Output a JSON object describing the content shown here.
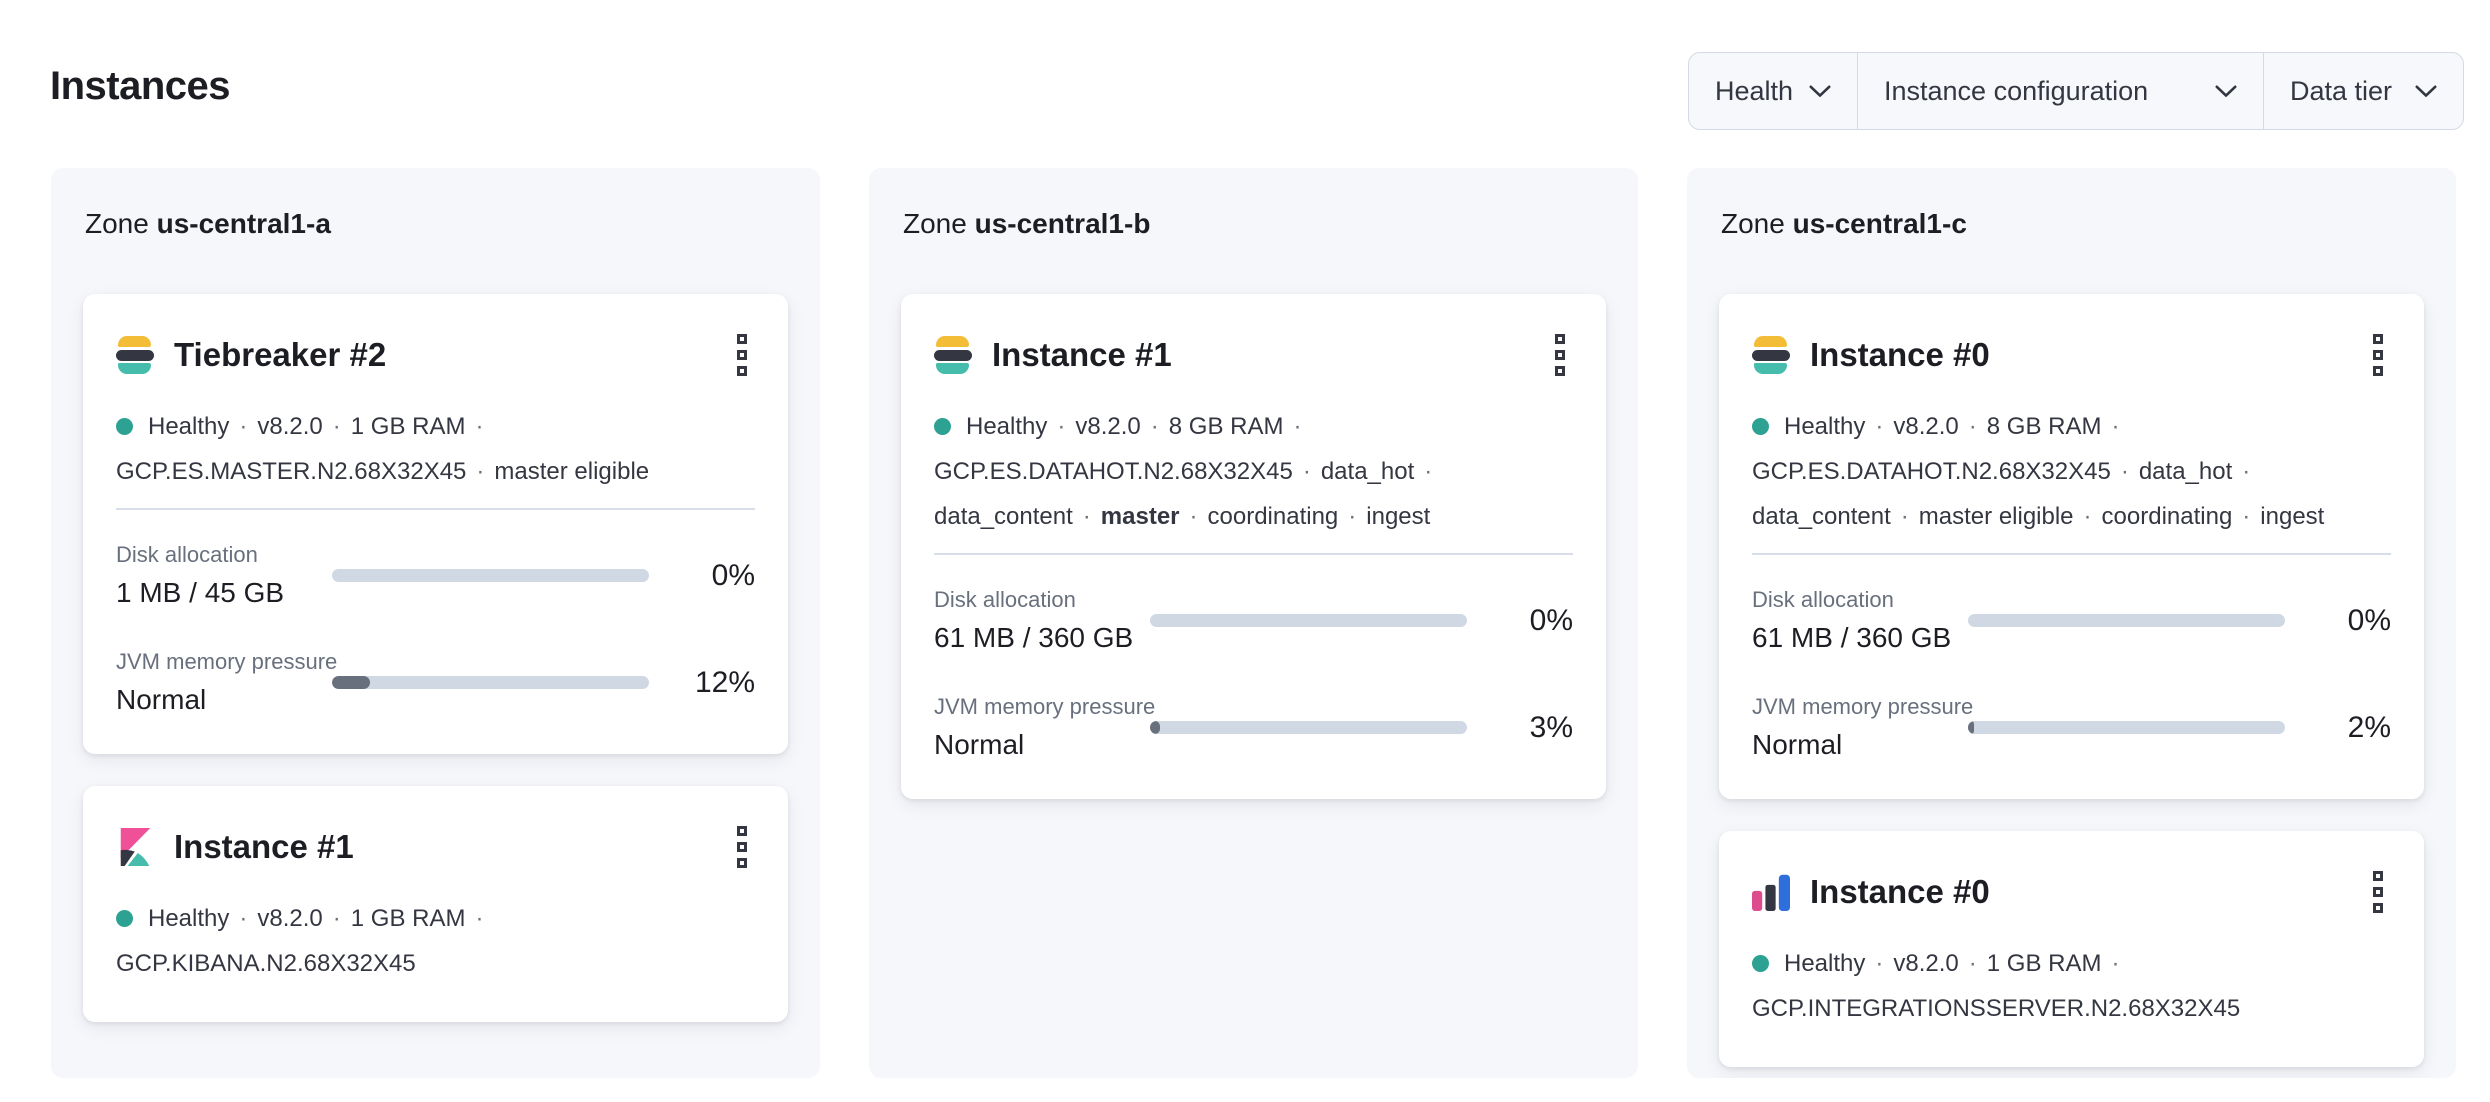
{
  "page": {
    "title": "Instances"
  },
  "filter_bar": {
    "items": [
      {
        "label": "Health",
        "icon": "chevron-down"
      },
      {
        "label": "Instance configuration",
        "icon": "chevron-down"
      },
      {
        "label": "Data tier",
        "icon": "chevron-down"
      }
    ]
  },
  "colors": {
    "health": "#2DA293",
    "brand_dark": "#343741",
    "teal": "#45BCAC",
    "es_yellow": "#F4BD38",
    "kibana_pink": "#EF5098",
    "int_pink": "#DD4C8D",
    "int_blue": "#2F6FDB",
    "track": "#D0D8E4",
    "fill": "#69707D",
    "panel_bg": "#F5F7FB"
  },
  "zones": [
    {
      "label": "Zone",
      "name": "us-central1-a",
      "cards": [
        {
          "icon": "elasticsearch-logo",
          "title": "Tiebreaker #2",
          "health": "Healthy",
          "meta": [
            {
              "trail": true,
              "segs": [
                {
                  "t": "Healthy"
                },
                {
                  "t": "v8.2.0"
                },
                {
                  "t": "1 GB RAM"
                }
              ]
            },
            {
              "trail": false,
              "segs": [
                {
                  "t": "GCP.ES.MASTER.N2.68X32X45"
                },
                {
                  "t": "master eligible"
                }
              ]
            }
          ],
          "metrics": [
            {
              "label": "Disk allocation",
              "value": "1 MB / 45 GB",
              "percent": "0%",
              "fill": 0
            },
            {
              "label": "JVM memory pressure",
              "value": "Normal",
              "percent": "12%",
              "fill": 12
            }
          ]
        },
        {
          "icon": "kibana-logo",
          "title": "Instance #1",
          "health": "Healthy",
          "meta": [
            {
              "trail": true,
              "segs": [
                {
                  "t": "Healthy"
                },
                {
                  "t": "v8.2.0"
                },
                {
                  "t": "1 GB RAM"
                }
              ]
            },
            {
              "trail": false,
              "segs": [
                {
                  "t": "GCP.KIBANA.N2.68X32X45"
                }
              ]
            }
          ],
          "metrics": []
        }
      ]
    },
    {
      "label": "Zone",
      "name": "us-central1-b",
      "cards": [
        {
          "icon": "elasticsearch-logo",
          "title": "Instance #1",
          "health": "Healthy",
          "meta": [
            {
              "trail": true,
              "segs": [
                {
                  "t": "Healthy"
                },
                {
                  "t": "v8.2.0"
                },
                {
                  "t": "8 GB RAM"
                }
              ]
            },
            {
              "trail": true,
              "segs": [
                {
                  "t": "GCP.ES.DATAHOT.N2.68X32X45"
                },
                {
                  "t": "data_hot"
                }
              ]
            },
            {
              "trail": false,
              "segs": [
                {
                  "t": "data_content"
                },
                {
                  "t": "master",
                  "b": true
                },
                {
                  "t": "coordinating"
                },
                {
                  "t": "ingest"
                }
              ]
            }
          ],
          "metrics": [
            {
              "label": "Disk allocation",
              "value": "61 MB / 360 GB",
              "percent": "0%",
              "fill": 0
            },
            {
              "label": "JVM memory pressure",
              "value": "Normal",
              "percent": "3%",
              "fill": 3
            }
          ]
        }
      ]
    },
    {
      "label": "Zone",
      "name": "us-central1-c",
      "cards": [
        {
          "icon": "elasticsearch-logo",
          "title": "Instance #0",
          "health": "Healthy",
          "meta": [
            {
              "trail": true,
              "segs": [
                {
                  "t": "Healthy"
                },
                {
                  "t": "v8.2.0"
                },
                {
                  "t": "8 GB RAM"
                }
              ]
            },
            {
              "trail": true,
              "segs": [
                {
                  "t": "GCP.ES.DATAHOT.N2.68X32X45"
                },
                {
                  "t": "data_hot"
                }
              ]
            },
            {
              "trail": false,
              "segs": [
                {
                  "t": "data_content"
                },
                {
                  "t": "master eligible"
                },
                {
                  "t": "coordinating"
                },
                {
                  "t": "ingest"
                }
              ]
            }
          ],
          "metrics": [
            {
              "label": "Disk allocation",
              "value": "61 MB / 360 GB",
              "percent": "0%",
              "fill": 0
            },
            {
              "label": "JVM memory pressure",
              "value": "Normal",
              "percent": "2%",
              "fill": 2
            }
          ]
        },
        {
          "icon": "integrations-server-logo",
          "title": "Instance #0",
          "health": "Healthy",
          "meta": [
            {
              "trail": true,
              "segs": [
                {
                  "t": "Healthy"
                },
                {
                  "t": "v8.2.0"
                },
                {
                  "t": "1 GB RAM"
                }
              ]
            },
            {
              "trail": false,
              "segs": [
                {
                  "t": "GCP.INTEGRATIONSSERVER.N2.68X32X45"
                }
              ]
            }
          ],
          "metrics": []
        }
      ]
    }
  ]
}
